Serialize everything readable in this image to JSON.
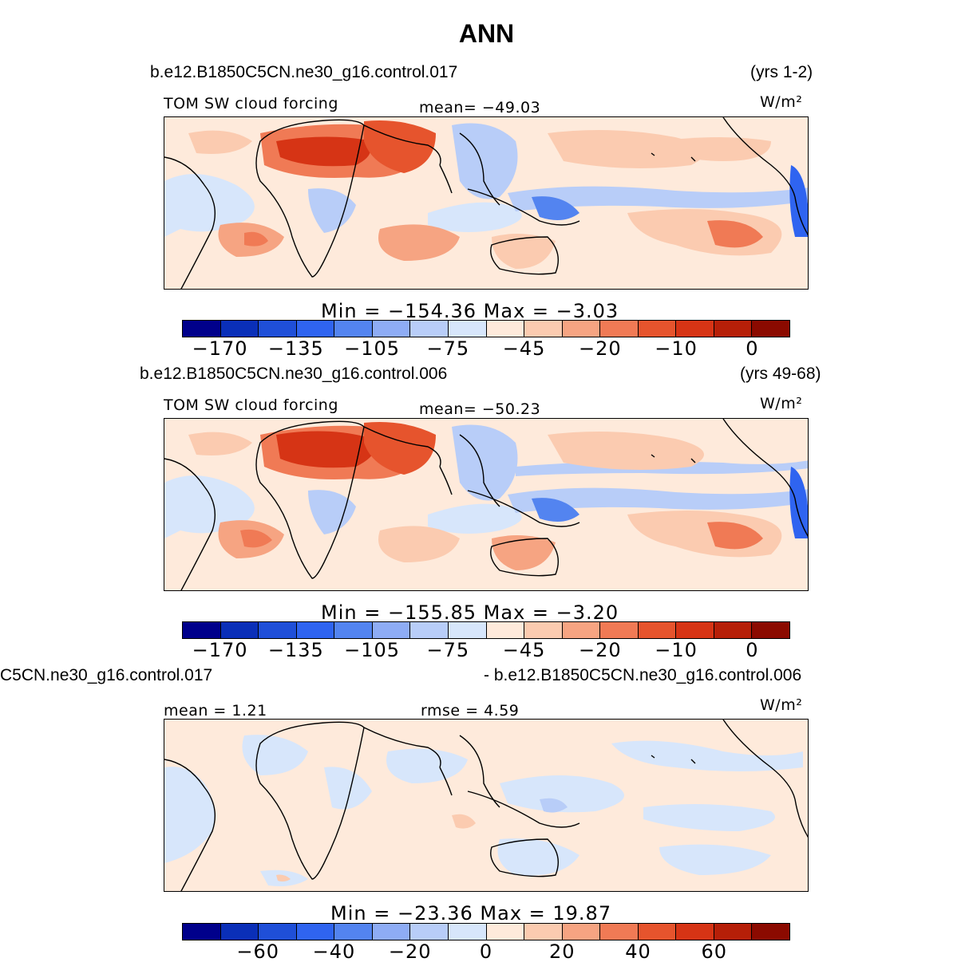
{
  "title": "ANN",
  "panels": [
    {
      "case": "b.e12.B1850C5CN.ne30_g16.control.017",
      "years": "(yrs 1-2)",
      "variable": "TOM SW cloud forcing",
      "stat1": "mean= −49.03",
      "stat2": "",
      "units": "W/m²",
      "minmax": "Min = −154.36 Max = −3.03",
      "ticks": [
        "−170",
        "−135",
        "−105",
        "−75",
        "−45",
        "−20",
        "−10",
        "0"
      ],
      "colors": [
        "#00008b",
        "#0a2fb8",
        "#1f4fd8",
        "#2f64f0",
        "#5384f0",
        "#8eacf5",
        "#b8cdf8",
        "#d7e6fb",
        "#feeadb",
        "#fbcbb0",
        "#f6a482",
        "#f07a55",
        "#e6542d",
        "#d63415",
        "#b61f08",
        "#8b0a00"
      ]
    },
    {
      "case": "b.e12.B1850C5CN.ne30_g16.control.006",
      "years": "(yrs 49-68)",
      "variable": "TOM SW cloud forcing",
      "stat1": "mean= −50.23",
      "stat2": "",
      "units": "W/m²",
      "minmax": "Min = −155.85 Max = −3.20",
      "ticks": [
        "−170",
        "−135",
        "−105",
        "−75",
        "−45",
        "−20",
        "−10",
        "0"
      ],
      "colors": [
        "#00008b",
        "#0a2fb8",
        "#1f4fd8",
        "#2f64f0",
        "#5384f0",
        "#8eacf5",
        "#b8cdf8",
        "#d7e6fb",
        "#feeadb",
        "#fbcbb0",
        "#f6a482",
        "#f07a55",
        "#e6542d",
        "#d63415",
        "#b61f08",
        "#8b0a00"
      ]
    },
    {
      "case_left": "C5CN.ne30_g16.control.017",
      "case_right": "- b.e12.B1850C5CN.ne30_g16.control.006",
      "stat1": "mean =     1.21",
      "stat2": "rmse =     4.59",
      "units": "W/m²",
      "minmax": "Min = −23.36 Max =  19.87",
      "ticks": [
        "−60",
        "−40",
        "−20",
        "0",
        "20",
        "40",
        "60"
      ],
      "colors": [
        "#00008b",
        "#0a2fb8",
        "#1f4fd8",
        "#2f64f0",
        "#5384f0",
        "#8eacf5",
        "#b8cdf8",
        "#d7e6fb",
        "#feeadb",
        "#fbcbb0",
        "#f6a482",
        "#f07a55",
        "#e6542d",
        "#d63415",
        "#b61f08",
        "#8b0a00"
      ]
    }
  ]
}
